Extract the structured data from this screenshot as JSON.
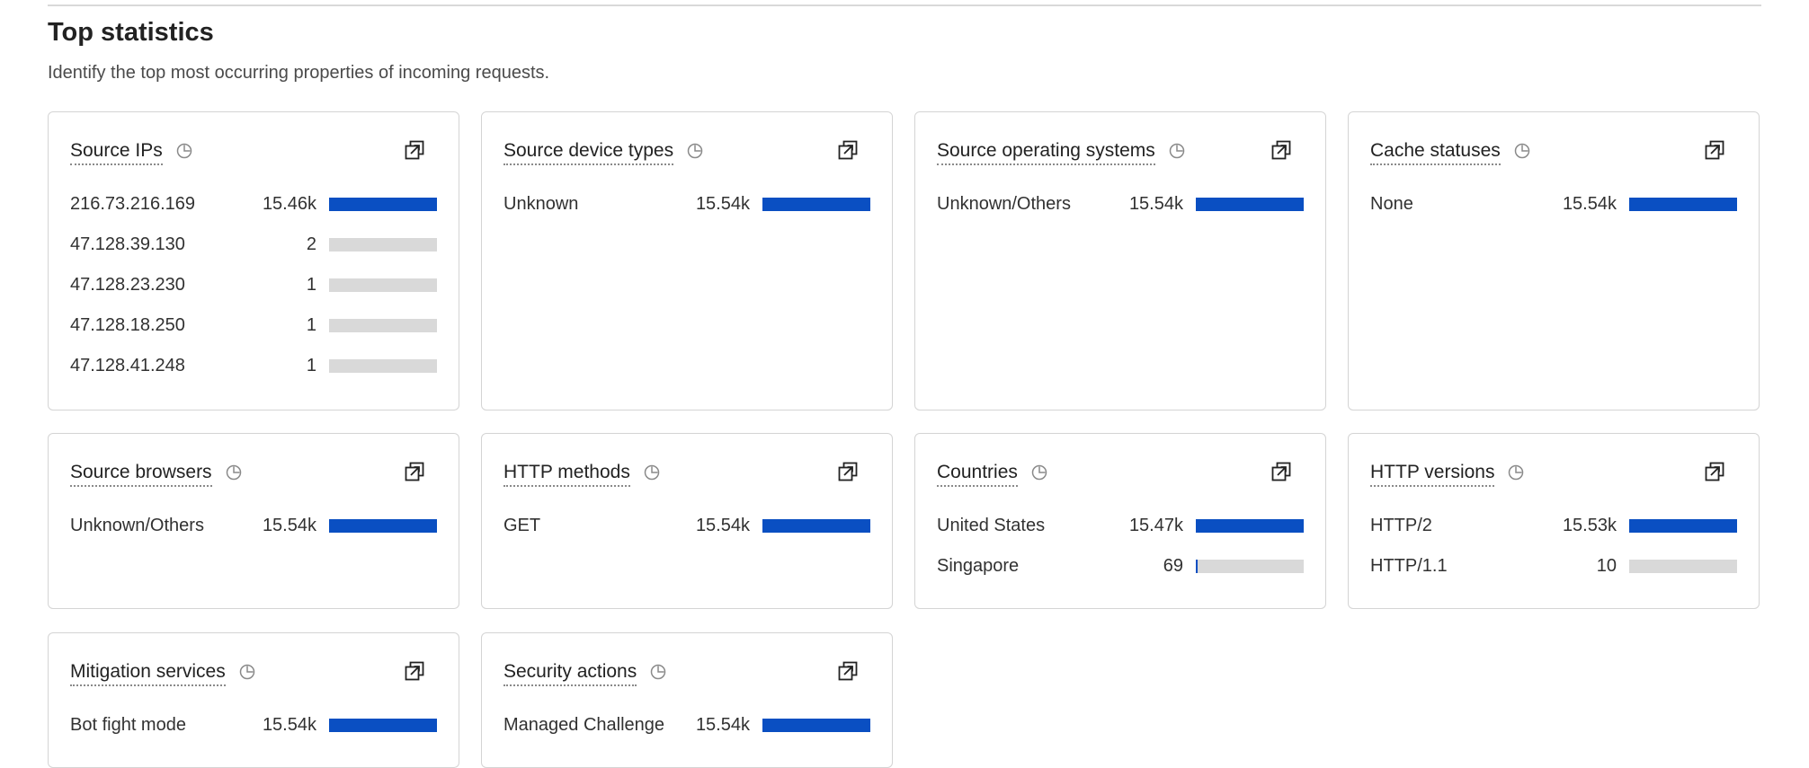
{
  "header": {
    "title": "Top statistics",
    "subtitle": "Identify the top most occurring properties of incoming requests."
  },
  "colors": {
    "bar_fill": "#0a4fc2",
    "bar_track": "#d9d9d9"
  },
  "cards": [
    {
      "id": "source-ips",
      "title": "Source IPs",
      "rows": [
        {
          "label": "216.73.216.169",
          "value": "15.46k",
          "fraction": 1.0
        },
        {
          "label": "47.128.39.130",
          "value": "2",
          "fraction": 0.0
        },
        {
          "label": "47.128.23.230",
          "value": "1",
          "fraction": 0.0
        },
        {
          "label": "47.128.18.250",
          "value": "1",
          "fraction": 0.0
        },
        {
          "label": "47.128.41.248",
          "value": "1",
          "fraction": 0.0
        }
      ]
    },
    {
      "id": "source-device-types",
      "title": "Source device types",
      "rows": [
        {
          "label": "Unknown",
          "value": "15.54k",
          "fraction": 1.0
        }
      ]
    },
    {
      "id": "source-operating-systems",
      "title": "Source operating systems",
      "rows": [
        {
          "label": "Unknown/Others",
          "value": "15.54k",
          "fraction": 1.0
        }
      ]
    },
    {
      "id": "cache-statuses",
      "title": "Cache statuses",
      "rows": [
        {
          "label": "None",
          "value": "15.54k",
          "fraction": 1.0
        }
      ]
    },
    {
      "id": "source-browsers",
      "title": "Source browsers",
      "rows": [
        {
          "label": "Unknown/Others",
          "value": "15.54k",
          "fraction": 1.0
        }
      ]
    },
    {
      "id": "http-methods",
      "title": "HTTP methods",
      "rows": [
        {
          "label": "GET",
          "value": "15.54k",
          "fraction": 1.0
        }
      ]
    },
    {
      "id": "countries",
      "title": "Countries",
      "rows": [
        {
          "label": "United States",
          "value": "15.47k",
          "fraction": 1.0
        },
        {
          "label": "Singapore",
          "value": "69",
          "fraction": 0.0045
        }
      ]
    },
    {
      "id": "http-versions",
      "title": "HTTP versions",
      "rows": [
        {
          "label": "HTTP/2",
          "value": "15.53k",
          "fraction": 1.0
        },
        {
          "label": "HTTP/1.1",
          "value": "10",
          "fraction": 0.0
        }
      ]
    },
    {
      "id": "mitigation-services",
      "title": "Mitigation services",
      "rows": [
        {
          "label": "Bot fight mode",
          "value": "15.54k",
          "fraction": 1.0
        }
      ]
    },
    {
      "id": "security-actions",
      "title": "Security actions",
      "rows": [
        {
          "label": "Managed Challenge",
          "value": "15.54k",
          "fraction": 1.0
        }
      ]
    }
  ]
}
